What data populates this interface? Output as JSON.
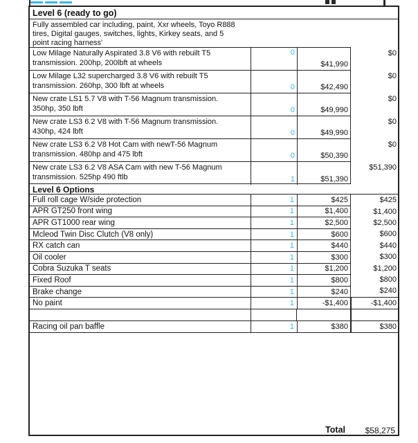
{
  "accent": {
    "qty_color": "#3cb4e5",
    "border_color": "#222222"
  },
  "header": {
    "title": "Level 6 (ready to go)"
  },
  "description": {
    "line1": "Fully assembled car including, paint, Xxr wheels, Toyo R888",
    "line2": "tires, Digital gauges, switches, lights, Kirkey seats, and 5",
    "line3": "point racing harness'"
  },
  "engine_rows": [
    {
      "desc1": "Low Milage Naturally Aspirated 3.8 V6 with rebuilt T5",
      "desc2": "transmission.  200hp, 200lbft at wheels",
      "qty": "0",
      "qty_pos": "top",
      "price": "$41,990",
      "total": "$0"
    },
    {
      "desc1": "Low Milage L32 supercharged 3.8 V6 with rebuilt T5",
      "desc2": "transmission.  260hp, 300 lbft at wheels",
      "qty": "0",
      "qty_pos": "bottom",
      "price": "$42,490",
      "total": "$0"
    },
    {
      "desc1": "New crate LS1 5.7 V8 with T-56 Magnum transmission.",
      "desc2": "350hp, 350 lbft",
      "qty": "0",
      "qty_pos": "bottom",
      "price": "$49,990",
      "total": "$0"
    },
    {
      "desc1": "New crate LS3 6.2 V8 with T-56 Magnum transmission.",
      "desc2": "430hp, 424 lbft",
      "qty": "0",
      "qty_pos": "bottom",
      "price": "$49,990",
      "total": "$0"
    },
    {
      "desc1": "New crate LS3 6.2 V8 Hot Cam with newT-56 Magnum",
      "desc2": "transmission.  480hp and 475 lbft",
      "qty": "0",
      "qty_pos": "bottom",
      "price": "$50,390",
      "total": "$0"
    },
    {
      "desc1": "New crate LS3 6.2 V8 ASA Cam with new T-56 Magnum",
      "desc2": "transmission.  525hp 490 ftlb",
      "qty": "1",
      "qty_pos": "bottom",
      "price": "$51,390",
      "total": "$51,390"
    }
  ],
  "options_header": {
    "title": "Level 6 Options"
  },
  "option_rows": [
    {
      "label": "Full roll cage W/side protection",
      "qty": "1",
      "price": "$425",
      "total": "$425",
      "total_boxed": false
    },
    {
      "label": "APR GT250 front wing",
      "qty": "1",
      "price": "$1,400",
      "total": "$1,400",
      "total_boxed": false
    },
    {
      "label": "APR GT1000 rear wing",
      "qty": "1",
      "price": "$2,500",
      "total": "$2,500",
      "total_boxed": false
    },
    {
      "label": "Mcleod Twin Disc Clutch (V8 only)",
      "qty": "1",
      "price": "$600",
      "total": "$600",
      "total_boxed": false
    },
    {
      "label": "RX catch can",
      "qty": "1",
      "price": "$440",
      "total": "$440",
      "total_boxed": false
    },
    {
      "label": "Oil cooler",
      "qty": "1",
      "price": "$300",
      "total": "$300",
      "total_boxed": false
    },
    {
      "label": "Cobra Suzuka T seats",
      "qty": "1",
      "price": "$1,200",
      "total": "$1,200",
      "total_boxed": false
    },
    {
      "label": "Fixed Roof",
      "qty": "1",
      "price": "$800",
      "total": "$800",
      "total_boxed": false
    },
    {
      "label": "Brake change",
      "qty": "1",
      "price": "$240",
      "total": "$240",
      "total_boxed": false
    },
    {
      "label": "No paint",
      "qty": "1",
      "price": "-$1,400",
      "total": "-$1,400",
      "total_boxed": true
    }
  ],
  "extra_row": {
    "label": "Racing oil pan baffle",
    "qty": "1",
    "price": "$380",
    "total": "$380"
  },
  "footer": {
    "total_label": "Total",
    "total_value": "$58,275"
  }
}
